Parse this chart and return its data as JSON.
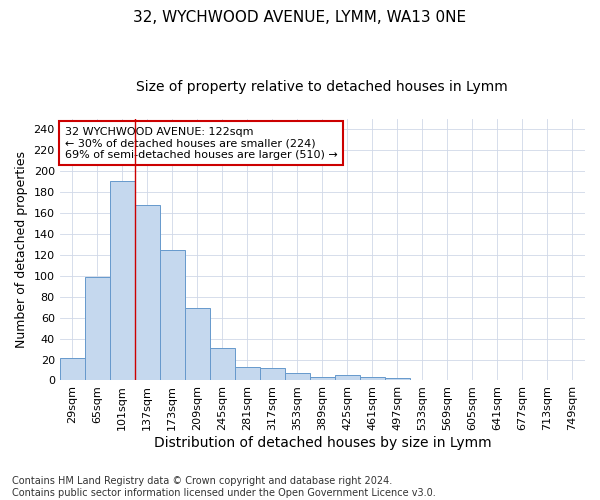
{
  "title1": "32, WYCHWOOD AVENUE, LYMM, WA13 0NE",
  "title2": "Size of property relative to detached houses in Lymm",
  "xlabel": "Distribution of detached houses by size in Lymm",
  "ylabel": "Number of detached properties",
  "annotation_line1": "32 WYCHWOOD AVENUE: 122sqm",
  "annotation_line2": "← 30% of detached houses are smaller (224)",
  "annotation_line3": "69% of semi-detached houses are larger (510) →",
  "footer1": "Contains HM Land Registry data © Crown copyright and database right 2024.",
  "footer2": "Contains public sector information licensed under the Open Government Licence v3.0.",
  "bar_labels": [
    "29sqm",
    "65sqm",
    "101sqm",
    "137sqm",
    "173sqm",
    "209sqm",
    "245sqm",
    "281sqm",
    "317sqm",
    "353sqm",
    "389sqm",
    "425sqm",
    "461sqm",
    "497sqm",
    "533sqm",
    "569sqm",
    "605sqm",
    "641sqm",
    "677sqm",
    "713sqm",
    "749sqm"
  ],
  "bar_values": [
    21,
    99,
    191,
    168,
    125,
    69,
    31,
    13,
    12,
    7,
    3,
    5,
    3,
    2,
    0,
    0,
    0,
    0,
    0,
    0,
    0
  ],
  "bar_color": "#c5d8ee",
  "bar_edgecolor": "#6699cc",
  "vline_index": 2.5,
  "vline_color": "#cc0000",
  "box_edgecolor": "#cc0000",
  "ylim": [
    0,
    250
  ],
  "yticks": [
    0,
    20,
    40,
    60,
    80,
    100,
    120,
    140,
    160,
    180,
    200,
    220,
    240
  ],
  "bg_color": "#ffffff",
  "grid_color": "#d0d8e8",
  "title1_fontsize": 11,
  "title2_fontsize": 10,
  "ylabel_fontsize": 9,
  "xlabel_fontsize": 10,
  "tick_fontsize": 8,
  "footer_fontsize": 7
}
